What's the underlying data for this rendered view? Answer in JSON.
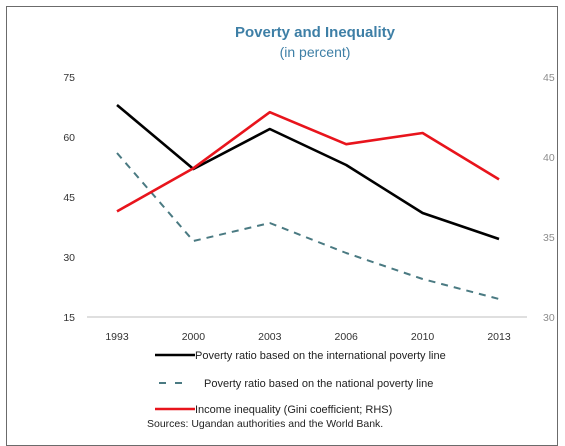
{
  "chart_data": {
    "type": "line",
    "title": "Poverty and Inequality",
    "subtitle": "(in percent)",
    "categories": [
      "1993",
      "2000",
      "2003",
      "2006",
      "2010",
      "2013"
    ],
    "ylim": [
      15,
      75
    ],
    "y_ticks": [
      "75",
      "60",
      "45",
      "30",
      "15"
    ],
    "y2lim": [
      30,
      45
    ],
    "y2_ticks": [
      "45",
      "40",
      "35",
      "30"
    ],
    "grid": false,
    "legend_position": "bottom",
    "series": [
      {
        "name": "Poverty ratio based on the international poverty line",
        "axis": "left",
        "color": "#000000",
        "dash": "solid",
        "values": [
          68,
          52,
          62,
          53,
          41,
          34.5
        ]
      },
      {
        "name": "Poverty ratio based on the national poverty line",
        "axis": "left",
        "color": "#4a7a82",
        "dash": "dashed",
        "values": [
          56,
          34,
          38.5,
          31,
          24.5,
          19.5
        ]
      },
      {
        "name": "Income inequality (Gini coefficient; RHS)",
        "axis": "right",
        "color": "#e8141c",
        "dash": "solid",
        "values": [
          36.6,
          39.3,
          42.8,
          40.8,
          41.5,
          38.6
        ]
      }
    ],
    "source": "Sources: Ugandan authorities and the World Bank."
  }
}
